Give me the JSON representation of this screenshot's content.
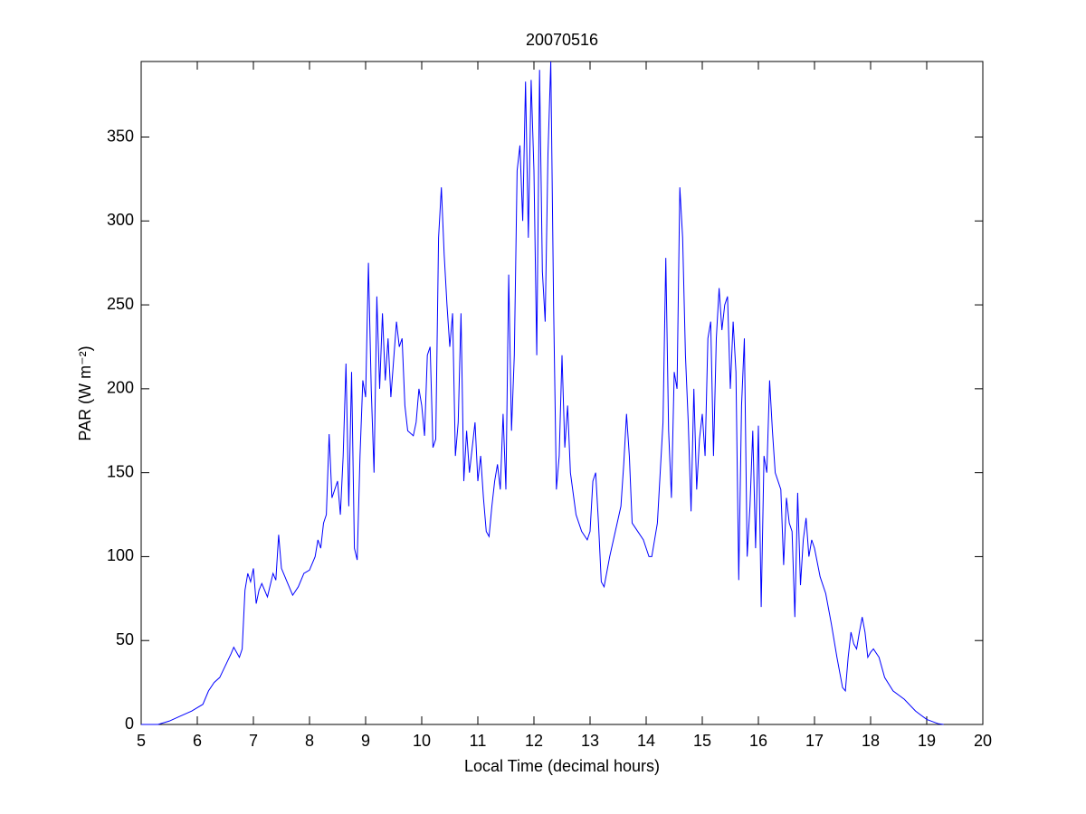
{
  "chart_data": {
    "type": "line",
    "title": "20070516",
    "x_label": "Local Time (decimal hours)",
    "y_label": "PAR (W m⁻²)",
    "x": [
      5,
      5.3,
      5.5,
      5.7,
      5.9,
      6,
      6.1,
      6.2,
      6.3,
      6.4,
      6.5,
      6.6,
      6.65,
      6.75,
      6.8,
      6.85,
      6.9,
      6.95,
      7,
      7.05,
      7.1,
      7.15,
      7.25,
      7.35,
      7.4,
      7.45,
      7.5,
      7.6,
      7.7,
      7.8,
      7.9,
      8,
      8.1,
      8.15,
      8.2,
      8.25,
      8.3,
      8.35,
      8.4,
      8.5,
      8.55,
      8.6,
      8.65,
      8.7,
      8.75,
      8.8,
      8.85,
      8.9,
      8.95,
      9,
      9.05,
      9.1,
      9.15,
      9.2,
      9.25,
      9.3,
      9.35,
      9.4,
      9.45,
      9.55,
      9.6,
      9.65,
      9.7,
      9.75,
      9.85,
      9.9,
      9.95,
      10,
      10.05,
      10.1,
      10.15,
      10.2,
      10.25,
      10.3,
      10.35,
      10.4,
      10.45,
      10.5,
      10.55,
      10.6,
      10.65,
      10.7,
      10.75,
      10.8,
      10.85,
      10.9,
      10.95,
      11,
      11.05,
      11.1,
      11.15,
      11.2,
      11.25,
      11.3,
      11.35,
      11.4,
      11.45,
      11.5,
      11.55,
      11.6,
      11.65,
      11.7,
      11.75,
      11.8,
      11.85,
      11.9,
      11.95,
      12,
      12.05,
      12.1,
      12.15,
      12.2,
      12.25,
      12.3,
      12.35,
      12.4,
      12.45,
      12.5,
      12.55,
      12.6,
      12.65,
      12.75,
      12.85,
      12.95,
      13,
      13.05,
      13.1,
      13.15,
      13.2,
      13.25,
      13.35,
      13.45,
      13.55,
      13.6,
      13.65,
      13.7,
      13.75,
      13.85,
      13.95,
      14.05,
      14.1,
      14.2,
      14.3,
      14.35,
      14.4,
      14.45,
      14.5,
      14.55,
      14.6,
      14.65,
      14.7,
      14.75,
      14.8,
      14.85,
      14.9,
      14.95,
      15,
      15.05,
      15.1,
      15.15,
      15.2,
      15.25,
      15.3,
      15.35,
      15.4,
      15.45,
      15.5,
      15.55,
      15.6,
      15.65,
      15.7,
      15.75,
      15.8,
      15.85,
      15.9,
      15.95,
      16,
      16.05,
      16.1,
      16.15,
      16.2,
      16.25,
      16.3,
      16.35,
      16.4,
      16.45,
      16.5,
      16.55,
      16.6,
      16.65,
      16.7,
      16.75,
      16.8,
      16.85,
      16.9,
      16.95,
      17,
      17.1,
      17.2,
      17.3,
      17.4,
      17.5,
      17.55,
      17.6,
      17.65,
      17.7,
      17.75,
      17.8,
      17.85,
      17.9,
      17.95,
      18,
      18.05,
      18.15,
      18.25,
      18.4,
      18.6,
      18.8,
      19,
      19.2,
      19.3
    ],
    "series": [
      {
        "color": "#0000ff",
        "values": [
          0,
          0,
          2,
          5,
          8,
          10,
          12,
          20,
          25,
          28,
          35,
          42,
          46,
          40,
          45,
          80,
          90,
          85,
          93,
          72,
          80,
          84,
          76,
          90,
          86,
          113,
          93,
          85,
          77,
          82,
          90,
          92,
          100,
          110,
          105,
          120,
          125,
          173,
          135,
          145,
          125,
          160,
          215,
          130,
          210,
          105,
          98,
          160,
          205,
          195,
          275,
          200,
          150,
          255,
          200,
          245,
          205,
          230,
          195,
          240,
          225,
          230,
          190,
          175,
          172,
          180,
          200,
          190,
          172,
          220,
          225,
          165,
          170,
          290,
          320,
          280,
          250,
          225,
          245,
          160,
          180,
          245,
          145,
          175,
          150,
          165,
          180,
          145,
          160,
          135,
          115,
          112,
          130,
          145,
          155,
          140,
          185,
          140,
          268,
          175,
          220,
          330,
          345,
          300,
          383,
          290,
          384,
          330,
          220,
          390,
          270,
          240,
          340,
          395,
          250,
          140,
          160,
          220,
          165,
          190,
          150,
          125,
          115,
          110,
          115,
          145,
          150,
          120,
          85,
          82,
          100,
          115,
          130,
          155,
          185,
          160,
          120,
          115,
          110,
          100,
          100,
          120,
          180,
          278,
          175,
          135,
          210,
          200,
          320,
          290,
          220,
          180,
          127,
          200,
          140,
          170,
          185,
          160,
          230,
          240,
          160,
          230,
          260,
          235,
          250,
          255,
          200,
          240,
          210,
          86,
          190,
          230,
          100,
          130,
          175,
          105,
          178,
          70,
          160,
          150,
          205,
          175,
          150,
          145,
          140,
          95,
          135,
          120,
          115,
          64,
          138,
          83,
          110,
          123,
          100,
          110,
          105,
          88,
          78,
          60,
          40,
          22,
          20,
          40,
          55,
          48,
          45,
          55,
          64,
          55,
          40,
          43,
          45,
          40,
          28,
          20,
          15,
          8,
          3,
          0.5,
          0
        ]
      }
    ],
    "xlim": [
      5,
      20
    ],
    "xticks": [
      5,
      6,
      7,
      8,
      9,
      10,
      11,
      12,
      13,
      14,
      15,
      16,
      17,
      18,
      19,
      20
    ],
    "ylim": [
      0,
      395
    ],
    "yticks": [
      0,
      50,
      100,
      150,
      200,
      250,
      300,
      350
    ],
    "grid": false
  }
}
